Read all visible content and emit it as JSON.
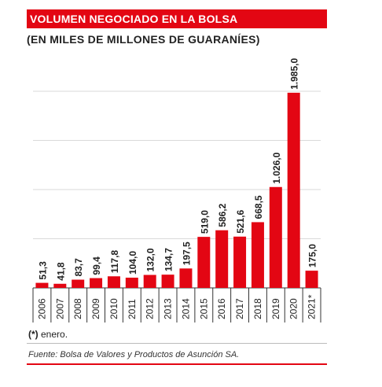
{
  "header": {
    "title": "VOLUMEN NEGOCIADO EN LA BOLSA",
    "subtitle": "(EN MILES DE MILLONES DE GUARANÍES)"
  },
  "footer": {
    "footnote_marker": "(*)",
    "footnote_text": " enero.",
    "source": "Fuente: Bolsa de Valores y Productos de Asunción SA."
  },
  "colors": {
    "bar": "#e30613",
    "grid": "#d9d9d9",
    "text": "#222222"
  },
  "chart_data": {
    "type": "bar",
    "title": "VOLUMEN NEGOCIADO EN LA BOLSA",
    "subtitle": "(EN MILES DE MILLONES DE GUARANÍES)",
    "categories": [
      "2006",
      "2007",
      "2008",
      "2009",
      "2010",
      "2011",
      "2012",
      "2013",
      "2014",
      "2015",
      "2016",
      "2017",
      "2018",
      "2019",
      "2020",
      "2021*"
    ],
    "values": [
      51.3,
      41.8,
      83.7,
      99.4,
      117.8,
      104.0,
      132.0,
      134.7,
      197.5,
      519.0,
      586.2,
      521.6,
      668.5,
      1026.0,
      1985.0,
      175.0
    ],
    "value_labels": [
      "51,3",
      "41,8",
      "83,7",
      "99,4",
      "117,8",
      "104,0",
      "132,0",
      "134,7",
      "197,5",
      "519,0",
      "586,2",
      "521,6",
      "668,5",
      "1.026,0",
      "1.985,0",
      "175,0"
    ],
    "ylim": [
      0,
      2000
    ],
    "grid": true,
    "xlabel": "",
    "ylabel": ""
  }
}
